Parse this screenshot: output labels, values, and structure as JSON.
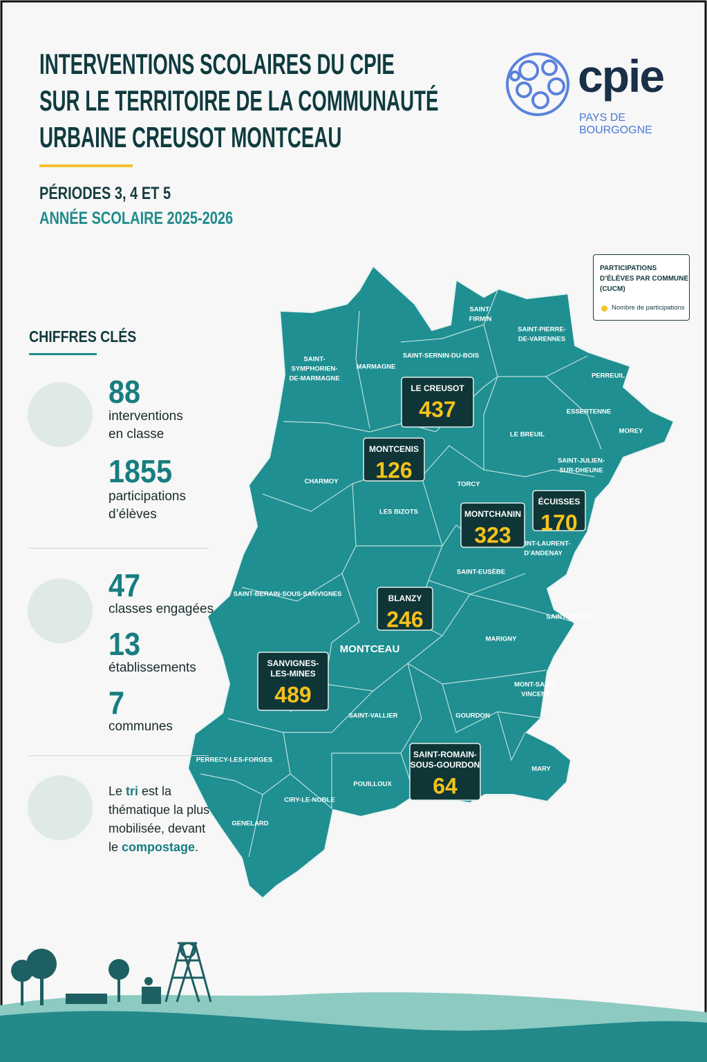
{
  "header": {
    "title": [
      "INTERVENTIONS SCOLAIRES DU CPIE",
      "SUR LE TERRITOIRE DE LA COMMUNAUTÉ",
      "URBAINE CREUSOT MONTCEAU"
    ],
    "period": "PÉRIODES 3, 4 ET 5",
    "school_year": "ANNÉE SCOLAIRE 2025-2026"
  },
  "logo": {
    "name": "cpie",
    "region": [
      "PAYS DE",
      "BOURGOGNE"
    ]
  },
  "key_figures": {
    "title": "CHIFFRES CLÉS",
    "groups": [
      {
        "items": [
          {
            "value": 88,
            "label": [
              "interventions",
              "en classe"
            ]
          },
          {
            "value": 1855,
            "label": [
              "participations",
              "d’élèves"
            ]
          }
        ]
      },
      {
        "items": [
          {
            "value": 47,
            "label": [
              "classes engagées"
            ]
          },
          {
            "value": 13,
            "label": [
              "établissements"
            ]
          },
          {
            "value": 7,
            "label": [
              "communes"
            ]
          }
        ]
      }
    ],
    "highlight": [
      "Le ",
      "tri",
      " est la thématique la plus mobilisée, devant le ",
      "compostage",
      "."
    ]
  },
  "map": {
    "communes": [
      {
        "name": [
          "SAINT-",
          "SYMPHORIEN-",
          "DE-MARMAGNE"
        ]
      },
      {
        "name": [
          "MARMAGNE"
        ]
      },
      {
        "name": [
          "SAINT-SERNIN-DU-BOIS"
        ]
      },
      {
        "name": [
          "SAINT-",
          "FIRMIN"
        ]
      },
      {
        "name": [
          "SAINT-PIERRE-",
          "DE-VARENNES"
        ]
      },
      {
        "name": [
          "PERREUIL"
        ]
      },
      {
        "name": [
          "ESSERTENNE"
        ]
      },
      {
        "name": [
          "MOREY"
        ]
      },
      {
        "name": [
          "LE BREUIL"
        ]
      },
      {
        "name": [
          "SAINT-JULIEN-",
          "SUR-DHEUNE"
        ]
      },
      {
        "name": [
          "CHARMOY"
        ]
      },
      {
        "name": [
          "TORCY"
        ]
      },
      {
        "name": [
          "LES BIZOTS"
        ]
      },
      {
        "name": [
          "SAINT-LAURENT-",
          "D’ANDENAY"
        ]
      },
      {
        "name": [
          "SAINT-EUSÈBE"
        ]
      },
      {
        "name": [
          "SAINT-BERAIN-SOUS-SANVIGNES"
        ]
      },
      {
        "name": [
          "SAINT-MICAUD"
        ]
      },
      {
        "name": [
          "MARIGNY"
        ]
      },
      {
        "name": [
          "MONTCEAU"
        ]
      },
      {
        "name": [
          "MONT-SAINT-",
          "VINCENT"
        ]
      },
      {
        "name": [
          "SAINT-VALLIER"
        ]
      },
      {
        "name": [
          "GOURDON"
        ]
      },
      {
        "name": [
          "PERRECY-LES-FORGES"
        ]
      },
      {
        "name": [
          "MARY"
        ]
      },
      {
        "name": [
          "POUILLOUX"
        ]
      },
      {
        "name": [
          "CIRY-LE-NOBLE"
        ]
      },
      {
        "name": [
          "GENELARD"
        ]
      }
    ],
    "participations": [
      {
        "commune": [
          "LE CREUSOT"
        ],
        "value": 437
      },
      {
        "commune": [
          "MONTCENIS"
        ],
        "value": 126
      },
      {
        "commune": [
          "ÉCUISSES"
        ],
        "value": 170
      },
      {
        "commune": [
          "MONTCHANIN"
        ],
        "value": 323
      },
      {
        "commune": [
          "BLANZY"
        ],
        "value": 246
      },
      {
        "commune": [
          "SANVIGNES-",
          "LES-MINES"
        ],
        "value": 489
      },
      {
        "commune": [
          "SAINT-ROMAIN-",
          "SOUS-GOURDON"
        ],
        "value": 64
      }
    ],
    "legend": {
      "title": [
        "PARTICIPATIONS",
        "D’ÉLÈVES PAR COMMUNE",
        "(CUCM)"
      ],
      "item": "Nombre de participations"
    }
  }
}
